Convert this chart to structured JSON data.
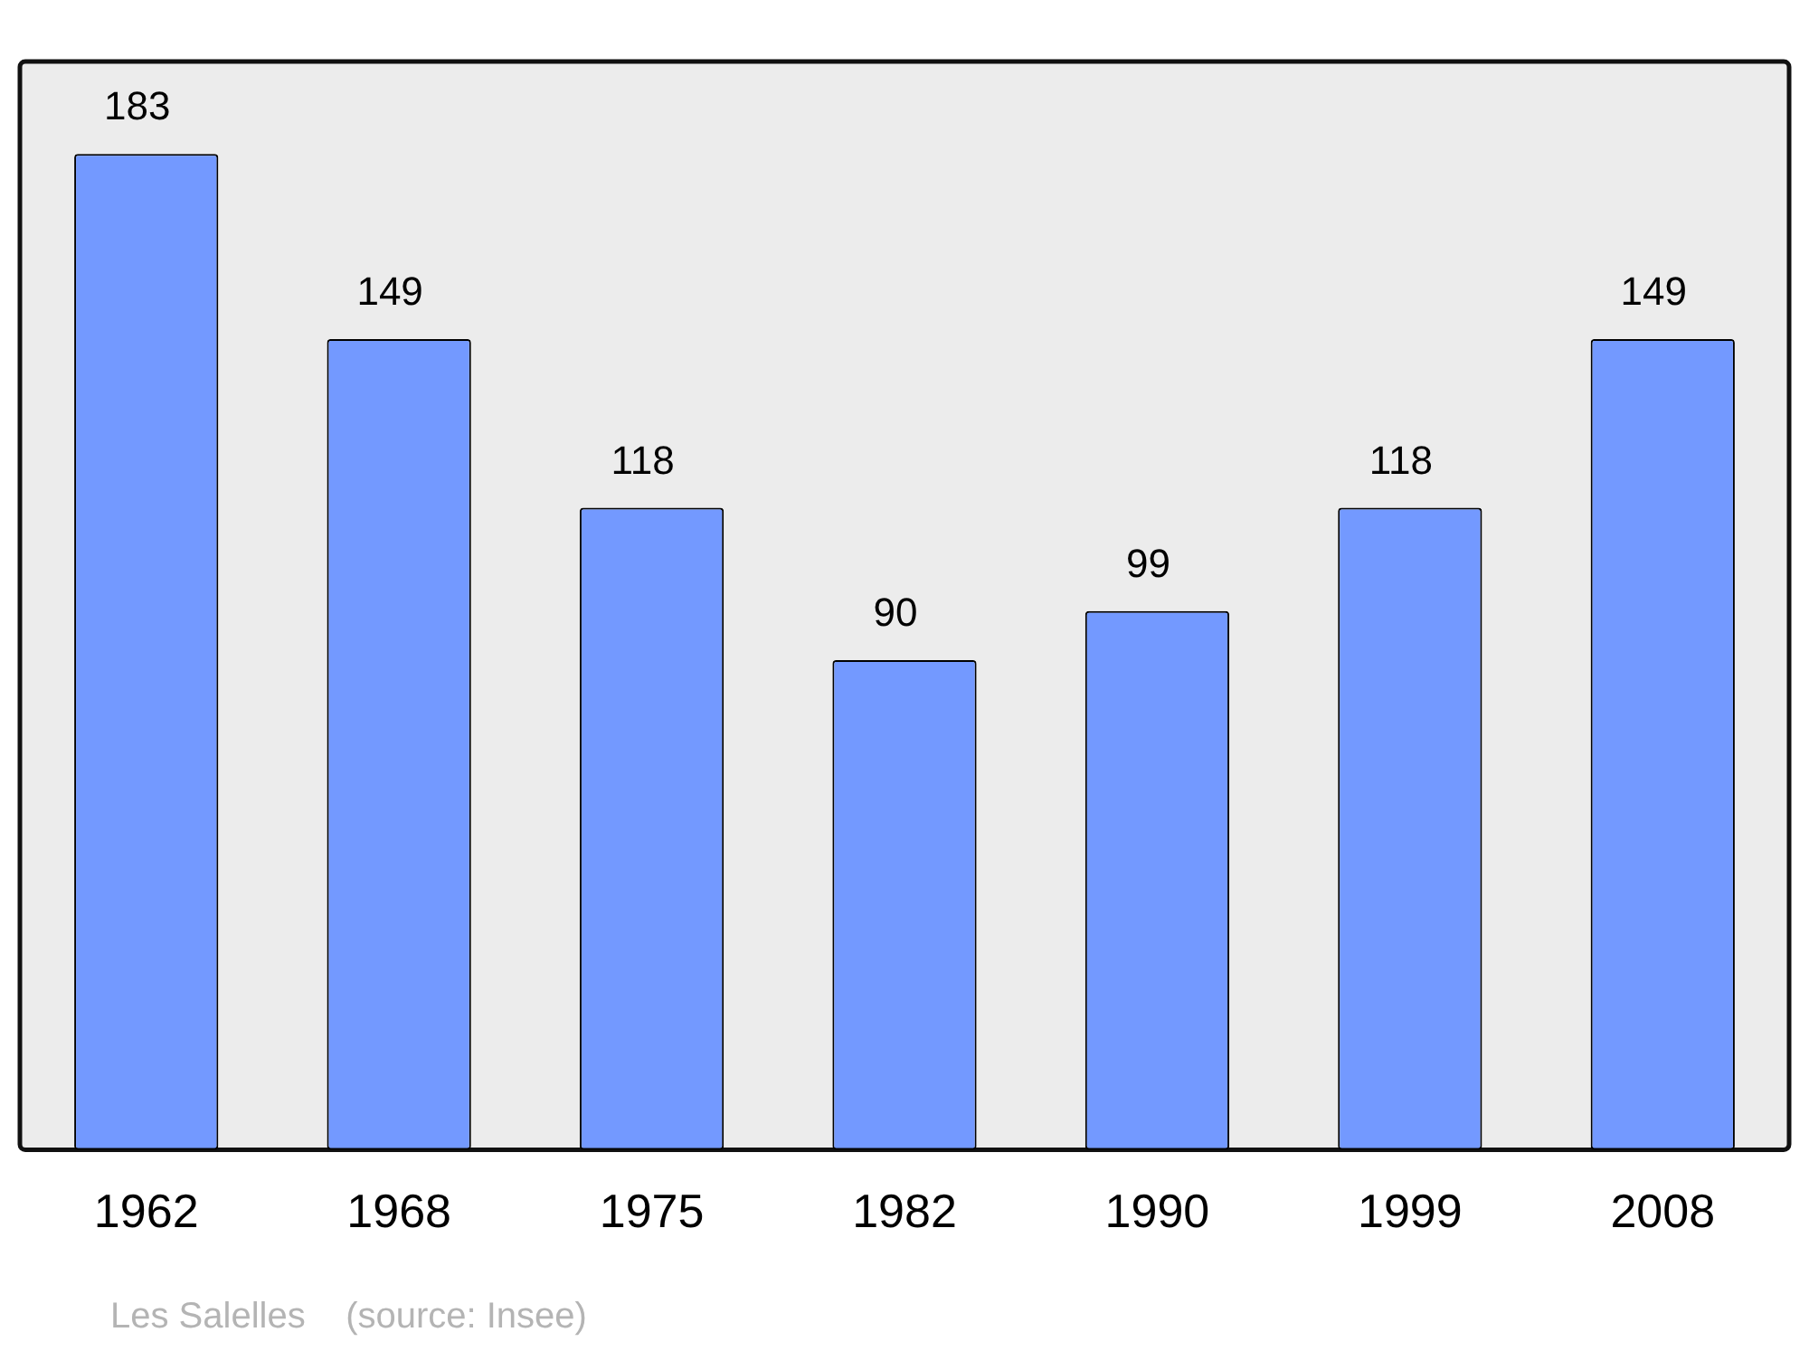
{
  "chart_data": {
    "type": "bar",
    "categories": [
      "1962",
      "1968",
      "1975",
      "1982",
      "1990",
      "1999",
      "2008"
    ],
    "values": [
      183,
      149,
      118,
      90,
      99,
      118,
      149
    ],
    "color": "#7399ff",
    "data_labels": true,
    "grid": false,
    "legend": false,
    "annotations": [
      "Les Salelles    (source: Insee)"
    ]
  }
}
